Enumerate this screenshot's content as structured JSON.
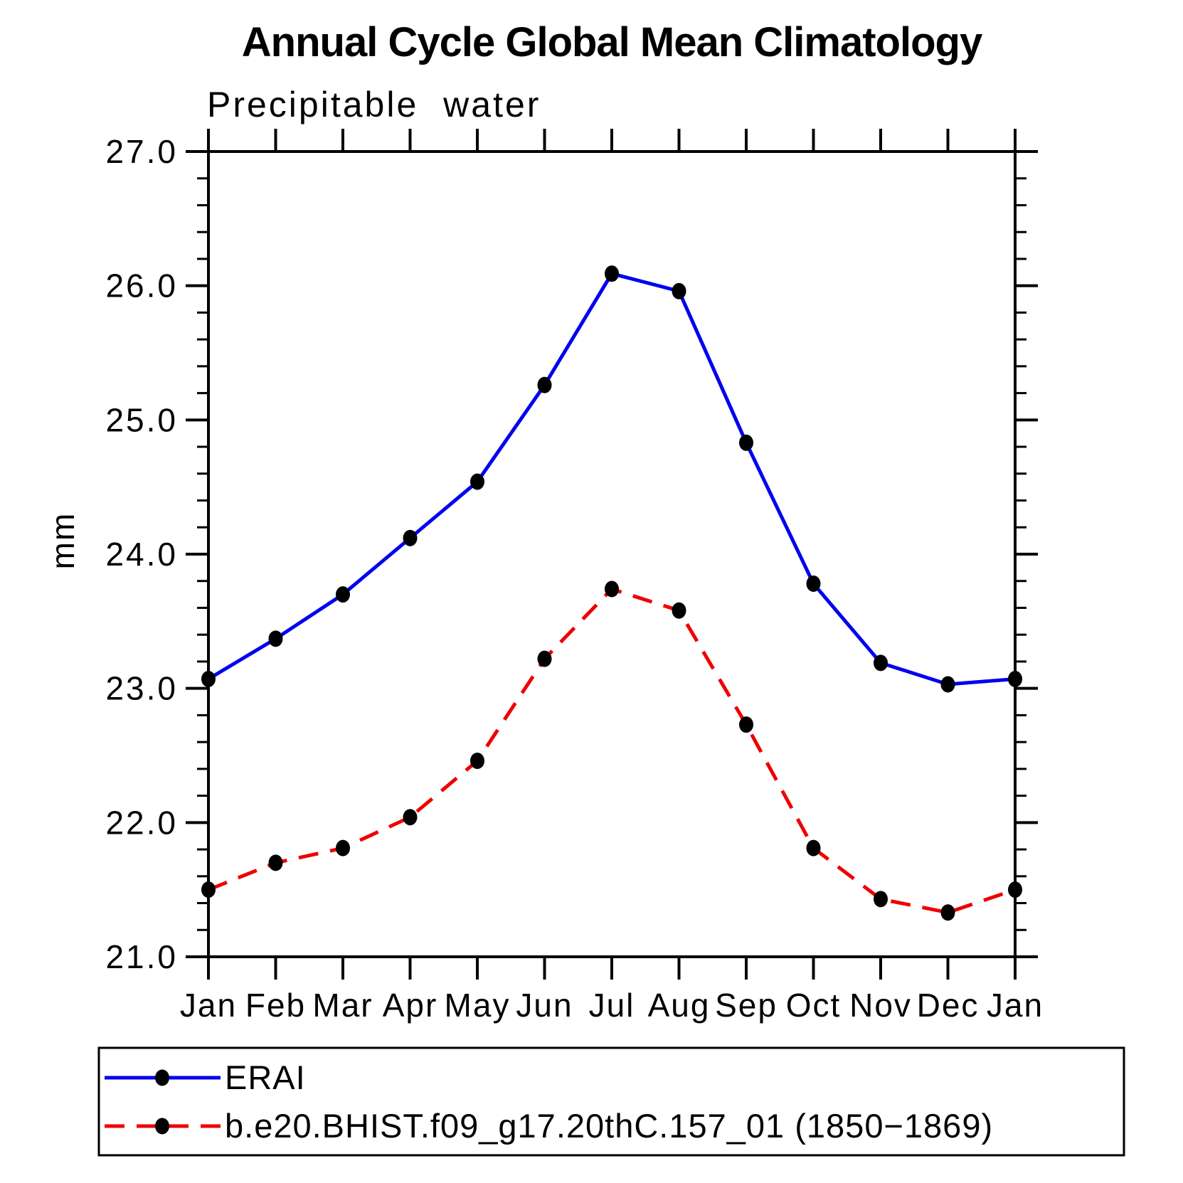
{
  "page": {
    "title": "Annual Cycle Global Mean Climatology",
    "subtitle": "Precipitable water",
    "y_axis_label": "mm"
  },
  "chart_data": {
    "type": "line",
    "title": "Annual Cycle Global Mean Climatology",
    "subtitle": "Precipitable water",
    "xlabel": "",
    "ylabel": "mm",
    "ylim": [
      21.0,
      27.0
    ],
    "ytick_major_interval": 1.0,
    "ytick_minor_interval": 0.2,
    "ytick_labels": [
      "21.0",
      "22.0",
      "23.0",
      "24.0",
      "25.0",
      "26.0",
      "27.0"
    ],
    "categories": [
      "Jan",
      "Feb",
      "Mar",
      "Apr",
      "May",
      "Jun",
      "Jul",
      "Aug",
      "Sep",
      "Oct",
      "Nov",
      "Dec",
      "Jan"
    ],
    "grid": false,
    "legend_position": "bottom",
    "axis_color": "#000000",
    "marker_color": "#000000",
    "series": [
      {
        "name": "ERAI",
        "color": "#0000ee",
        "style": "solid",
        "marker": "circle",
        "values": [
          23.07,
          23.37,
          23.7,
          24.12,
          24.54,
          25.26,
          26.09,
          25.96,
          24.83,
          23.78,
          23.19,
          23.03,
          23.07
        ]
      },
      {
        "name": "b.e20.BHIST.f09_g17.20thC.157_01 (1850−1869)",
        "color": "#ee0000",
        "style": "dashed",
        "marker": "circle",
        "values": [
          21.5,
          21.7,
          21.81,
          22.04,
          22.46,
          23.22,
          23.74,
          23.58,
          22.73,
          21.81,
          21.43,
          21.33,
          21.5
        ]
      }
    ]
  }
}
